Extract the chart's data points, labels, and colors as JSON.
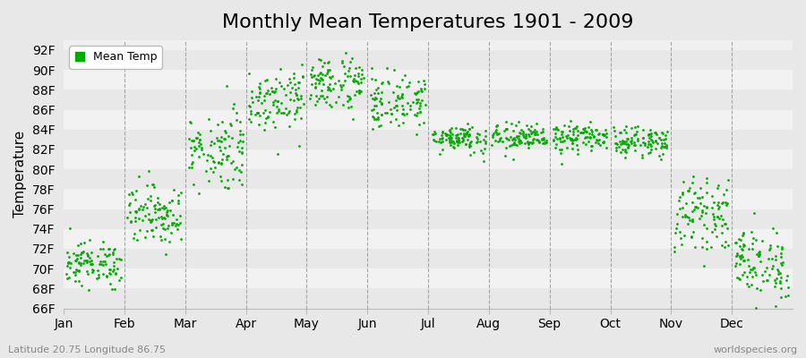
{
  "title": "Monthly Mean Temperatures 1901 - 2009",
  "ylabel": "Temperature",
  "xlabel_labels": [
    "Jan",
    "Feb",
    "Mar",
    "Apr",
    "May",
    "Jun",
    "Jul",
    "Aug",
    "Sep",
    "Oct",
    "Nov",
    "Dec"
  ],
  "ytick_labels": [
    "66F",
    "68F",
    "70F",
    "72F",
    "74F",
    "76F",
    "78F",
    "80F",
    "82F",
    "84F",
    "86F",
    "88F",
    "90F",
    "92F"
  ],
  "ytick_values": [
    66,
    68,
    70,
    72,
    74,
    76,
    78,
    80,
    82,
    84,
    86,
    88,
    90,
    92
  ],
  "ylim": [
    66,
    93
  ],
  "dot_color": "#00aa00",
  "background_color": "#e8e8e8",
  "plot_bg_color_light": "#f0f0f0",
  "plot_bg_color_dark": "#e0e0e0",
  "grid_color": "#ffffff",
  "legend_label": "Mean Temp",
  "footer_left": "Latitude 20.75 Longitude 86.75",
  "footer_right": "worldspecies.org",
  "title_fontsize": 16,
  "axis_fontsize": 11,
  "tick_fontsize": 10,
  "monthly_means": [
    70.5,
    75.5,
    82.0,
    87.2,
    88.7,
    86.8,
    83.2,
    83.2,
    83.2,
    82.8,
    75.5,
    70.5
  ],
  "monthly_stds": [
    1.1,
    1.5,
    2.0,
    1.6,
    1.4,
    1.4,
    0.7,
    0.7,
    0.7,
    0.7,
    1.7,
    1.8
  ],
  "n_years": 109
}
